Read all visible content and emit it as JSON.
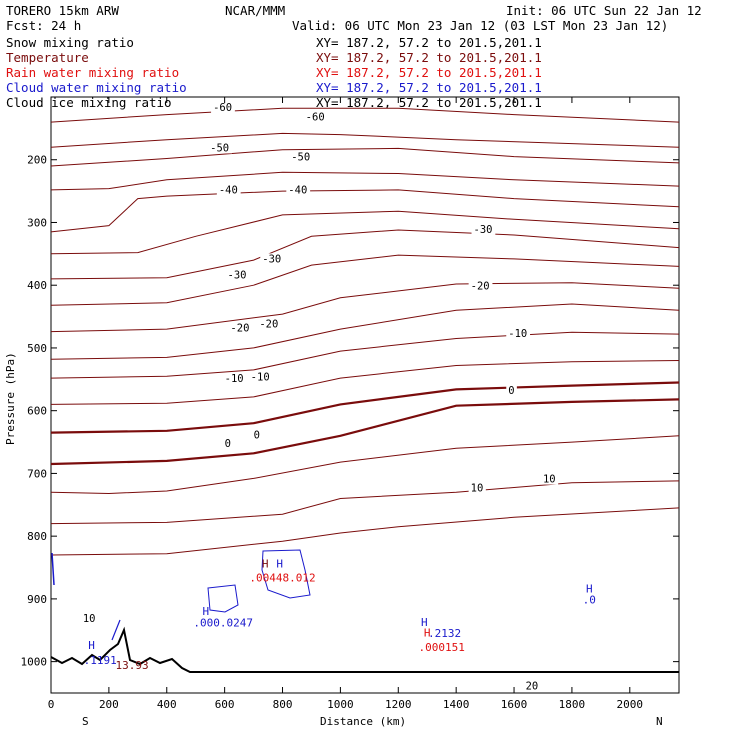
{
  "header": {
    "model": "TORERO  15km ARW",
    "org": "NCAR/MMM",
    "init": "Init: 06 UTC Sun 22 Jan 12",
    "fcst": "Fcst:   24 h",
    "valid": "Valid: 06 UTC Mon 23 Jan 12 (03 LST Mon 23 Jan 12)"
  },
  "fields": [
    {
      "name": "Snow mixing ratio",
      "xy": "XY= 187.2, 57.2 to 201.5,201.1",
      "color": "#000000"
    },
    {
      "name": "Temperature",
      "xy": "XY= 187.2, 57.2 to 201.5,201.1",
      "color": "#7a0c0c"
    },
    {
      "name": "Rain water mixing ratio",
      "xy": "XY= 187.2, 57.2 to 201.5,201.1",
      "color": "#e01010"
    },
    {
      "name": "Cloud water mixing ratio",
      "xy": "XY= 187.2, 57.2 to 201.5,201.1",
      "color": "#1a1acc"
    },
    {
      "name": "Cloud ice mixing ratio",
      "xy": "XY= 187.2, 57.2 to 201.5,201.1",
      "color": "#000000"
    }
  ],
  "chart_data": {
    "type": "line",
    "xlabel": "Distance (km)",
    "ylabel": "Pressure (hPa)",
    "xlim": [
      0,
      2170
    ],
    "ylim": [
      1050,
      100
    ],
    "xticks": [
      0,
      200,
      400,
      600,
      800,
      1000,
      1200,
      1400,
      1600,
      1800,
      2000
    ],
    "yticks": [
      200,
      300,
      400,
      500,
      600,
      700,
      800,
      900,
      1000
    ],
    "x_endpoints": {
      "left": "S",
      "right": "N"
    },
    "temperature_contours": [
      {
        "level": -60,
        "points": [
          [
            0,
            140
          ],
          [
            400,
            128
          ],
          [
            800,
            118
          ],
          [
            1200,
            118
          ],
          [
            1600,
            128
          ],
          [
            2170,
            140
          ]
        ]
      },
      {
        "level": -60,
        "points": [
          [
            0,
            180
          ],
          [
            400,
            168
          ],
          [
            800,
            158
          ],
          [
            1000,
            160
          ],
          [
            1400,
            168
          ],
          [
            2170,
            180
          ]
        ]
      },
      {
        "level": -50,
        "points": [
          [
            0,
            210
          ],
          [
            400,
            198
          ],
          [
            800,
            184
          ],
          [
            1200,
            182
          ],
          [
            1600,
            195
          ],
          [
            2170,
            205
          ]
        ]
      },
      {
        "level": -50,
        "points": [
          [
            0,
            248
          ],
          [
            200,
            246
          ],
          [
            400,
            232
          ],
          [
            800,
            220
          ],
          [
            1200,
            222
          ],
          [
            1600,
            232
          ],
          [
            2170,
            242
          ]
        ]
      },
      {
        "level": -40,
        "points": [
          [
            0,
            315
          ],
          [
            200,
            305
          ],
          [
            300,
            262
          ],
          [
            400,
            258
          ],
          [
            800,
            250
          ],
          [
            1200,
            248
          ],
          [
            1600,
            262
          ],
          [
            2170,
            275
          ]
        ]
      },
      {
        "level": -40,
        "points": [
          [
            0,
            350
          ],
          [
            300,
            348
          ],
          [
            500,
            322
          ],
          [
            800,
            288
          ],
          [
            1200,
            282
          ],
          [
            1600,
            295
          ],
          [
            2170,
            310
          ]
        ]
      },
      {
        "level": -30,
        "points": [
          [
            0,
            390
          ],
          [
            400,
            388
          ],
          [
            700,
            360
          ],
          [
            900,
            322
          ],
          [
            1200,
            312
          ],
          [
            1600,
            320
          ],
          [
            2170,
            340
          ]
        ]
      },
      {
        "level": -30,
        "points": [
          [
            0,
            432
          ],
          [
            400,
            428
          ],
          [
            700,
            400
          ],
          [
            900,
            368
          ],
          [
            1200,
            352
          ],
          [
            1600,
            358
          ],
          [
            2170,
            370
          ]
        ]
      },
      {
        "level": -20,
        "points": [
          [
            0,
            474
          ],
          [
            400,
            470
          ],
          [
            800,
            446
          ],
          [
            1000,
            420
          ],
          [
            1400,
            398
          ],
          [
            1800,
            396
          ],
          [
            2170,
            405
          ]
        ]
      },
      {
        "level": -20,
        "points": [
          [
            0,
            518
          ],
          [
            400,
            515
          ],
          [
            700,
            500
          ],
          [
            1000,
            470
          ],
          [
            1400,
            440
          ],
          [
            1800,
            430
          ],
          [
            2170,
            440
          ]
        ]
      },
      {
        "level": -10,
        "points": [
          [
            0,
            548
          ],
          [
            400,
            545
          ],
          [
            700,
            535
          ],
          [
            1000,
            505
          ],
          [
            1400,
            485
          ],
          [
            1800,
            475
          ],
          [
            2170,
            478
          ]
        ]
      },
      {
        "level": -10,
        "points": [
          [
            0,
            590
          ],
          [
            400,
            588
          ],
          [
            700,
            578
          ],
          [
            1000,
            548
          ],
          [
            1400,
            528
          ],
          [
            1800,
            522
          ],
          [
            2170,
            520
          ]
        ]
      },
      {
        "level": 0,
        "points": [
          [
            0,
            635
          ],
          [
            400,
            632
          ],
          [
            700,
            620
          ],
          [
            1000,
            590
          ],
          [
            1400,
            566
          ],
          [
            1800,
            560
          ],
          [
            2170,
            555
          ]
        ]
      },
      {
        "level": 0,
        "points": [
          [
            0,
            685
          ],
          [
            400,
            680
          ],
          [
            700,
            668
          ],
          [
            1000,
            640
          ],
          [
            1400,
            592
          ],
          [
            1800,
            586
          ],
          [
            2170,
            582
          ]
        ]
      },
      {
        "level": 10,
        "points": [
          [
            0,
            730
          ],
          [
            200,
            732
          ],
          [
            400,
            728
          ],
          [
            700,
            708
          ],
          [
            1000,
            682
          ],
          [
            1400,
            660
          ],
          [
            1800,
            650
          ],
          [
            2170,
            640
          ]
        ]
      },
      {
        "level": 10,
        "points": [
          [
            0,
            780
          ],
          [
            400,
            778
          ],
          [
            800,
            765
          ],
          [
            1000,
            740
          ],
          [
            1400,
            730
          ],
          [
            1800,
            715
          ],
          [
            2170,
            712
          ]
        ]
      },
      {
        "level": 10,
        "points": [
          [
            0,
            830
          ],
          [
            400,
            828
          ],
          [
            800,
            808
          ],
          [
            1000,
            795
          ],
          [
            1200,
            785
          ],
          [
            1600,
            770
          ],
          [
            2170,
            755
          ]
        ]
      }
    ],
    "contour_labels": [
      {
        "text": "-60",
        "x": 560,
        "p": 121
      },
      {
        "text": "-60",
        "x": 880,
        "p": 136
      },
      {
        "text": "-50",
        "x": 550,
        "p": 185
      },
      {
        "text": "-50",
        "x": 830,
        "p": 200
      },
      {
        "text": "-40",
        "x": 580,
        "p": 252
      },
      {
        "text": "-40",
        "x": 820,
        "p": 252
      },
      {
        "text": "-30",
        "x": 1460,
        "p": 315
      },
      {
        "text": "-30",
        "x": 730,
        "p": 362
      },
      {
        "text": "-30",
        "x": 610,
        "p": 388
      },
      {
        "text": "-20",
        "x": 1450,
        "p": 405
      },
      {
        "text": "-20",
        "x": 720,
        "p": 466
      },
      {
        "text": "-20",
        "x": 620,
        "p": 472
      },
      {
        "text": "-10",
        "x": 1580,
        "p": 481
      },
      {
        "text": "-10",
        "x": 690,
        "p": 550
      },
      {
        "text": "-10",
        "x": 600,
        "p": 553
      },
      {
        "text": "0",
        "x": 1580,
        "p": 572
      },
      {
        "text": "0",
        "x": 700,
        "p": 643
      },
      {
        "text": "0",
        "x": 600,
        "p": 656
      },
      {
        "text": "10",
        "x": 1700,
        "p": 713
      },
      {
        "text": "10",
        "x": 1450,
        "p": 727
      },
      {
        "text": "10",
        "x": 110,
        "p": 935
      },
      {
        "text": "20",
        "x": 1640,
        "p": 1043
      }
    ],
    "markers": [
      {
        "text": "H",
        "x": 140,
        "p": 980,
        "color": "#1a1acc"
      },
      {
        "text": ".1191",
        "x": 170,
        "p": 1004,
        "color": "#1a1acc"
      },
      {
        "text": "13.93",
        "x": 280,
        "p": 1012,
        "color": "#7a0c0c"
      },
      {
        "text": "H",
        "x": 535,
        "p": 926,
        "color": "#1a1acc"
      },
      {
        "text": ".000.0247",
        "x": 595,
        "p": 944,
        "color": "#1a1acc"
      },
      {
        "text": "H",
        "x": 740,
        "p": 850,
        "color": "#7a0c0c"
      },
      {
        "text": "H",
        "x": 790,
        "p": 850,
        "color": "#1a1acc"
      },
      {
        "text": ".00448.012",
        "x": 800,
        "p": 872,
        "color": "#e01010"
      },
      {
        "text": "H",
        "x": 1290,
        "p": 943,
        "color": "#1a1acc"
      },
      {
        "text": ".2132",
        "x": 1360,
        "p": 961,
        "color": "#1a1acc"
      },
      {
        "text": "H",
        "x": 1300,
        "p": 960,
        "color": "#e01010"
      },
      {
        "text": ".000151",
        "x": 1350,
        "p": 983,
        "color": "#e01010"
      },
      {
        "text": "H",
        "x": 1860,
        "p": 890,
        "color": "#1a1acc"
      },
      {
        "text": ".0",
        "x": 1860,
        "p": 907,
        "color": "#1a1acc"
      }
    ]
  }
}
